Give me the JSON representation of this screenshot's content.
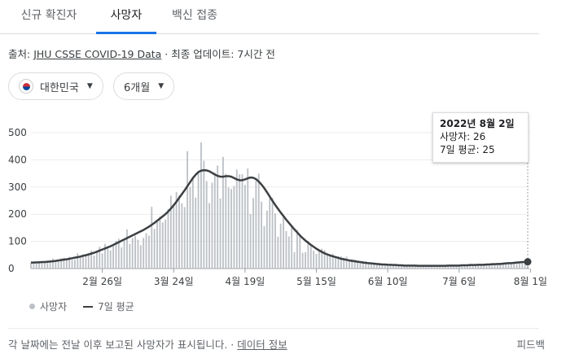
{
  "tabs": [
    {
      "label": "신규 확진자"
    },
    {
      "label": "사망자"
    },
    {
      "label": "백신 접종"
    }
  ],
  "source": {
    "prefix": "출처:",
    "link": "JHU CSSE COVID-19 Data",
    "suffix": "· 최종 업데이트: 7시간 전"
  },
  "filters": {
    "country": "대한민국",
    "period": "6개월"
  },
  "tooltip": {
    "title": "2022년 8월 2일",
    "deaths": "사망자: 26",
    "average": "7일 평균: 25"
  },
  "legend": {
    "bars": "사망자",
    "line": "7일 평균"
  },
  "footer": {
    "text": "각 날짜에는 전날 이후 보고된 사망자가 표시됩니다. ·",
    "link": "데이터 정보",
    "feedback": "피드백"
  },
  "colors": {
    "bars": "#bdc1c6",
    "line": "#3c4043",
    "accent": "#1a73e8"
  },
  "chart_data": {
    "type": "bar",
    "ylim": [
      0,
      500
    ],
    "yticks": [
      0,
      100,
      200,
      300,
      400,
      500
    ],
    "xtick_labels": [
      "2월 26일",
      "3월 24일",
      "4월 19일",
      "5월 15일",
      "6월 10일",
      "7월 6일",
      "8월 1일"
    ],
    "xtick_index": [
      26,
      52,
      78,
      104,
      130,
      156,
      182
    ],
    "series": [
      {
        "name": "사망자",
        "values": [
          21,
          21,
          23,
          27,
          22,
          25,
          29,
          24,
          36,
          27,
          31,
          38,
          40,
          34,
          43,
          32,
          33,
          56,
          45,
          52,
          45,
          50,
          66,
          48,
          61,
          80,
          56,
          91,
          73,
          67,
          86,
          102,
          110,
          78,
          102,
          144,
          91,
          112,
          120,
          106,
          86,
          113,
          130,
          121,
          227,
          146,
          171,
          191,
          170,
          180,
          219,
          268,
          230,
          282,
          269,
          240,
          226,
          432,
          300,
          338,
          261,
          358,
          464,
          397,
          322,
          241,
          316,
          353,
          379,
          258,
          411,
          348,
          298,
          293,
          304,
          364,
          347,
          347,
          308,
          368,
          201,
          259,
          323,
          349,
          246,
          156,
          213,
          259,
          260,
          203,
          117,
          165,
          191,
          138,
          118,
          160,
          60,
          142,
          120,
          58,
          60,
          101,
          82,
          66,
          54,
          68,
          73,
          67,
          52,
          48,
          54,
          46,
          46,
          45,
          40,
          44,
          33,
          35,
          33,
          29,
          25,
          28,
          27,
          23,
          22,
          21,
          18,
          17,
          18,
          16,
          15,
          15,
          14,
          13,
          11,
          12,
          11,
          10,
          12,
          11,
          11,
          10,
          12,
          10,
          11,
          9,
          10,
          12,
          11,
          10,
          11,
          10,
          11,
          10,
          10,
          12,
          13,
          12,
          14,
          13,
          12,
          13,
          15,
          14,
          15,
          16,
          15,
          18,
          17,
          16,
          18,
          21,
          20,
          22,
          24,
          22,
          23,
          26,
          25,
          24,
          27,
          26
        ],
        "color": "#bdc1c6"
      },
      {
        "name": "7일 평균",
        "values": [
          22,
          22,
          23,
          23,
          24,
          24,
          25,
          26,
          27,
          28,
          30,
          31,
          33,
          34,
          36,
          38,
          40,
          42,
          44,
          47,
          49,
          52,
          55,
          58,
          62,
          66,
          70,
          74,
          78,
          82,
          87,
          92,
          97,
          102,
          107,
          112,
          117,
          122,
          127,
          132,
          137,
          142,
          148,
          154,
          161,
          168,
          176,
          184,
          192,
          200,
          210,
          221,
          233,
          246,
          260,
          274,
          288,
          303,
          318,
          333,
          345,
          355,
          360,
          362,
          361,
          358,
          352,
          346,
          341,
          338,
          338,
          340,
          340,
          338,
          333,
          328,
          325,
          325,
          328,
          332,
          335,
          334,
          329,
          320,
          309,
          296,
          281,
          265,
          249,
          234,
          220,
          206,
          193,
          180,
          168,
          156,
          144,
          133,
          122,
          112,
          103,
          95,
          87,
          80,
          73,
          67,
          61,
          56,
          52,
          48,
          45,
          42,
          39,
          36,
          34,
          32,
          30,
          28,
          27,
          25,
          24,
          22,
          21,
          20,
          19,
          18,
          17,
          16,
          15,
          15,
          14,
          14,
          13,
          13,
          12,
          12,
          11,
          11,
          11,
          11,
          11,
          10,
          10,
          10,
          10,
          10,
          10,
          10,
          10,
          10,
          10,
          10,
          11,
          11,
          11,
          11,
          11,
          12,
          12,
          12,
          13,
          13,
          13,
          14,
          14,
          14,
          15,
          15,
          16,
          16,
          17,
          17,
          18,
          19,
          20,
          20,
          21,
          22,
          23,
          24,
          24,
          25
        ],
        "color": "#3c4043"
      }
    ]
  }
}
